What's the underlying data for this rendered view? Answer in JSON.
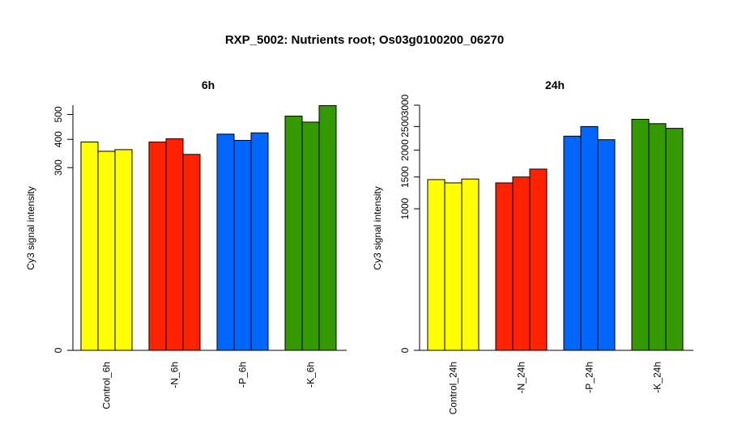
{
  "figure": {
    "title": "RXP_5002: Nutrients root; Os03g0100200_06270"
  },
  "chart_data": [
    {
      "type": "bar",
      "title": "6h",
      "xlabel": "",
      "ylabel": "Cy3 signal intensity",
      "scale": "sqrt",
      "ylim": [
        0,
        540
      ],
      "yticks": [
        0,
        300,
        400,
        500
      ],
      "categories": [
        "Control_6h",
        "-N_6h",
        "-P_6h",
        "-K_6h"
      ],
      "colors": [
        "#ffff00",
        "#ff2200",
        "#0066ff",
        "#339900"
      ],
      "values": [
        [
          390,
          356,
          362
        ],
        [
          390,
          402,
          345
        ],
        [
          420,
          396,
          425
        ],
        [
          493,
          468,
          538
        ]
      ],
      "grid": false,
      "legend": "none"
    },
    {
      "type": "bar",
      "title": "24h",
      "xlabel": "",
      "ylabel": "Cy3 signal intensity",
      "scale": "sqrt",
      "ylim": [
        0,
        3000
      ],
      "yticks": [
        0,
        1000,
        1500,
        2000,
        2500,
        3000
      ],
      "categories": [
        "Control_24h",
        "-N_24h",
        "-P_24h",
        "-K_24h"
      ],
      "colors": [
        "#ffff00",
        "#ff2200",
        "#0066ff",
        "#339900"
      ],
      "values": [
        [
          1455,
          1400,
          1465
        ],
        [
          1400,
          1500,
          1640
        ],
        [
          2290,
          2500,
          2215
        ],
        [
          2665,
          2565,
          2460
        ]
      ],
      "grid": false,
      "legend": "none"
    }
  ]
}
